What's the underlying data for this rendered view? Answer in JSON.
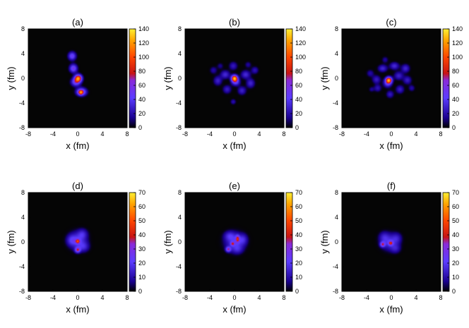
{
  "chart_data": [
    {
      "type": "heatmap",
      "title": "(a)",
      "xlabel": "x (fm)",
      "ylabel": "y (fm)",
      "xlim": [
        -8,
        8
      ],
      "ylim": [
        -8,
        8
      ],
      "xticks": [
        "-8",
        "-4",
        "0",
        "4",
        "8"
      ],
      "yticks": [
        "-8",
        "-4",
        "0",
        "4",
        "8"
      ],
      "colorbar": {
        "range": [
          0,
          140
        ],
        "ticks": [
          "0",
          "20",
          "40",
          "60",
          "80",
          "100",
          "120",
          "140"
        ]
      },
      "blobs": [
        {
          "x": 0.1,
          "y": 0.0,
          "sx": 0.4,
          "sy": 0.4,
          "v": 110
        },
        {
          "x": -0.3,
          "y": -0.6,
          "sx": 0.5,
          "sy": 0.45,
          "v": 55
        },
        {
          "x": 0.6,
          "y": -2.2,
          "sx": 0.55,
          "sy": 0.42,
          "v": 70
        },
        {
          "x": 0.5,
          "y": -2.3,
          "sx": 0.25,
          "sy": 0.25,
          "v": 60
        },
        {
          "x": -0.7,
          "y": 1.6,
          "sx": 0.42,
          "sy": 0.45,
          "v": 55
        },
        {
          "x": -0.9,
          "y": 3.6,
          "sx": 0.42,
          "sy": 0.45,
          "v": 50
        }
      ]
    },
    {
      "type": "heatmap",
      "title": "(b)",
      "xlabel": "x (fm)",
      "ylabel": "y (fm)",
      "xlim": [
        -8,
        8
      ],
      "ylim": [
        -8,
        8
      ],
      "xticks": [
        "-8",
        "-4",
        "0",
        "4",
        "8"
      ],
      "yticks": [
        "-8",
        "-4",
        "0",
        "4",
        "8"
      ],
      "colorbar": {
        "range": [
          0,
          140
        ],
        "ticks": [
          "0",
          "20",
          "40",
          "60",
          "80",
          "100",
          "120",
          "140"
        ]
      },
      "blobs": [
        {
          "x": 0.0,
          "y": 0.0,
          "sx": 0.35,
          "sy": 0.35,
          "v": 120
        },
        {
          "x": 0.2,
          "y": -0.6,
          "sx": 0.45,
          "sy": 0.4,
          "v": 45
        },
        {
          "x": -1.5,
          "y": 0.6,
          "sx": 0.5,
          "sy": 0.45,
          "v": 32
        },
        {
          "x": 1.8,
          "y": 0.6,
          "sx": 0.5,
          "sy": 0.45,
          "v": 32
        },
        {
          "x": -2.7,
          "y": -0.4,
          "sx": 0.45,
          "sy": 0.5,
          "v": 28
        },
        {
          "x": 2.6,
          "y": -0.8,
          "sx": 0.45,
          "sy": 0.5,
          "v": 30
        },
        {
          "x": -1.2,
          "y": -1.8,
          "sx": 0.45,
          "sy": 0.45,
          "v": 26
        },
        {
          "x": 1.2,
          "y": -2.0,
          "sx": 0.45,
          "sy": 0.45,
          "v": 28
        },
        {
          "x": -0.2,
          "y": 2.0,
          "sx": 0.45,
          "sy": 0.45,
          "v": 24
        },
        {
          "x": 3.3,
          "y": 1.3,
          "sx": 0.4,
          "sy": 0.4,
          "v": 22
        },
        {
          "x": -3.4,
          "y": 1.3,
          "sx": 0.4,
          "sy": 0.4,
          "v": 18
        },
        {
          "x": -0.2,
          "y": -3.8,
          "sx": 0.3,
          "sy": 0.3,
          "v": 20
        },
        {
          "x": 2.2,
          "y": 2.2,
          "sx": 0.35,
          "sy": 0.35,
          "v": 16
        },
        {
          "x": -2.3,
          "y": 2.0,
          "sx": 0.35,
          "sy": 0.35,
          "v": 14
        }
      ]
    },
    {
      "type": "heatmap",
      "title": "(c)",
      "xlabel": "x (fm)",
      "ylabel": "y (fm)",
      "xlim": [
        -8,
        8
      ],
      "ylim": [
        -8,
        8
      ],
      "xticks": [
        "-8",
        "-4",
        "0",
        "4",
        "8"
      ],
      "yticks": [
        "-8",
        "-4",
        "0",
        "4",
        "8"
      ],
      "colorbar": {
        "range": [
          0,
          140
        ],
        "ticks": [
          "0",
          "20",
          "40",
          "60",
          "80",
          "100",
          "120",
          "140"
        ]
      },
      "blobs": [
        {
          "x": -0.4,
          "y": -0.3,
          "sx": 0.35,
          "sy": 0.35,
          "v": 110
        },
        {
          "x": -0.6,
          "y": -0.8,
          "sx": 0.45,
          "sy": 0.45,
          "v": 40
        },
        {
          "x": -1.4,
          "y": 1.6,
          "sx": 0.5,
          "sy": 0.4,
          "v": 30
        },
        {
          "x": 0.5,
          "y": 2.0,
          "sx": 0.5,
          "sy": 0.4,
          "v": 32
        },
        {
          "x": 2.3,
          "y": 1.6,
          "sx": 0.45,
          "sy": 0.45,
          "v": 30
        },
        {
          "x": 1.2,
          "y": 0.4,
          "sx": 0.5,
          "sy": 0.45,
          "v": 28
        },
        {
          "x": 2.6,
          "y": -0.3,
          "sx": 0.45,
          "sy": 0.45,
          "v": 26
        },
        {
          "x": -2.4,
          "y": -0.2,
          "sx": 0.45,
          "sy": 0.45,
          "v": 26
        },
        {
          "x": -2.2,
          "y": -1.6,
          "sx": 0.4,
          "sy": 0.4,
          "v": 22
        },
        {
          "x": 1.4,
          "y": -1.8,
          "sx": 0.45,
          "sy": 0.45,
          "v": 26
        },
        {
          "x": -0.2,
          "y": -2.6,
          "sx": 0.4,
          "sy": 0.4,
          "v": 24
        },
        {
          "x": -3.4,
          "y": 0.8,
          "sx": 0.4,
          "sy": 0.4,
          "v": 18
        },
        {
          "x": 3.3,
          "y": -1.6,
          "sx": 0.35,
          "sy": 0.35,
          "v": 18
        },
        {
          "x": -1.0,
          "y": 3.0,
          "sx": 0.35,
          "sy": 0.35,
          "v": 16
        },
        {
          "x": -3.2,
          "y": -1.8,
          "sx": 0.3,
          "sy": 0.3,
          "v": 14
        }
      ]
    },
    {
      "type": "heatmap",
      "title": "(d)",
      "xlabel": "x (fm)",
      "ylabel": "y (fm)",
      "xlim": [
        -8,
        8
      ],
      "ylim": [
        -8,
        8
      ],
      "xticks": [
        "-8",
        "-4",
        "0",
        "4",
        "8"
      ],
      "yticks": [
        "-8",
        "-4",
        "0",
        "4",
        "8"
      ],
      "colorbar": {
        "range": [
          0,
          70
        ],
        "ticks": [
          "0",
          "10",
          "20",
          "30",
          "40",
          "50",
          "60",
          "70"
        ]
      },
      "blobs": [
        {
          "x": 0.0,
          "y": 0.2,
          "sx": 1.0,
          "sy": 1.0,
          "v": 18
        },
        {
          "x": -1.0,
          "y": 0.3,
          "sx": 0.55,
          "sy": 0.6,
          "v": 12
        },
        {
          "x": 0.8,
          "y": 1.3,
          "sx": 0.55,
          "sy": 0.55,
          "v": 12
        },
        {
          "x": 1.0,
          "y": -0.8,
          "sx": 0.6,
          "sy": 0.55,
          "v": 12
        },
        {
          "x": 0.0,
          "y": 0.1,
          "sx": 0.25,
          "sy": 0.25,
          "v": 30
        },
        {
          "x": 0.0,
          "y": -1.3,
          "sx": 0.3,
          "sy": 0.3,
          "v": 32
        }
      ]
    },
    {
      "type": "heatmap",
      "title": "(e)",
      "xlabel": "x (fm)",
      "ylabel": "y (fm)",
      "xlim": [
        -8,
        8
      ],
      "ylim": [
        -8,
        8
      ],
      "xticks": [
        "-8",
        "-4",
        "0",
        "4",
        "8"
      ],
      "yticks": [
        "-8",
        "-4",
        "0",
        "4",
        "8"
      ],
      "colorbar": {
        "range": [
          0,
          70
        ],
        "ticks": [
          "0",
          "10",
          "20",
          "30",
          "40",
          "50",
          "60",
          "70"
        ]
      },
      "blobs": [
        {
          "x": 0.0,
          "y": 0.0,
          "sx": 1.1,
          "sy": 1.05,
          "v": 18
        },
        {
          "x": -0.8,
          "y": 1.0,
          "sx": 0.6,
          "sy": 0.5,
          "v": 12
        },
        {
          "x": 1.4,
          "y": 0.4,
          "sx": 0.5,
          "sy": 0.6,
          "v": 12
        },
        {
          "x": 0.5,
          "y": -1.2,
          "sx": 0.6,
          "sy": 0.5,
          "v": 10
        },
        {
          "x": 0.5,
          "y": 0.5,
          "sx": 0.22,
          "sy": 0.4,
          "v": 28
        },
        {
          "x": -1.0,
          "y": -1.2,
          "sx": 0.28,
          "sy": 0.28,
          "v": 30
        },
        {
          "x": -0.3,
          "y": -0.3,
          "sx": 0.22,
          "sy": 0.22,
          "v": 25
        }
      ]
    },
    {
      "type": "heatmap",
      "title": "(f)",
      "xlabel": "x (fm)",
      "ylabel": "y (fm)",
      "xlim": [
        -8,
        8
      ],
      "ylim": [
        -8,
        8
      ],
      "xticks": [
        "-8",
        "-4",
        "0",
        "4",
        "8"
      ],
      "yticks": [
        "-8",
        "-4",
        "0",
        "4",
        "8"
      ],
      "colorbar": {
        "range": [
          0,
          70
        ],
        "ticks": [
          "0",
          "10",
          "20",
          "30",
          "40",
          "50",
          "60",
          "70"
        ]
      },
      "blobs": [
        {
          "x": -0.3,
          "y": 0.0,
          "sx": 1.0,
          "sy": 0.95,
          "v": 16
        },
        {
          "x": -1.2,
          "y": 0.8,
          "sx": 0.55,
          "sy": 0.6,
          "v": 10
        },
        {
          "x": 0.9,
          "y": 0.6,
          "sx": 0.55,
          "sy": 0.6,
          "v": 10
        },
        {
          "x": 0.7,
          "y": -1.1,
          "sx": 0.55,
          "sy": 0.5,
          "v": 10
        },
        {
          "x": -1.4,
          "y": -0.4,
          "sx": 0.28,
          "sy": 0.28,
          "v": 30
        },
        {
          "x": -0.1,
          "y": -0.2,
          "sx": 0.25,
          "sy": 0.25,
          "v": 28
        }
      ]
    }
  ]
}
